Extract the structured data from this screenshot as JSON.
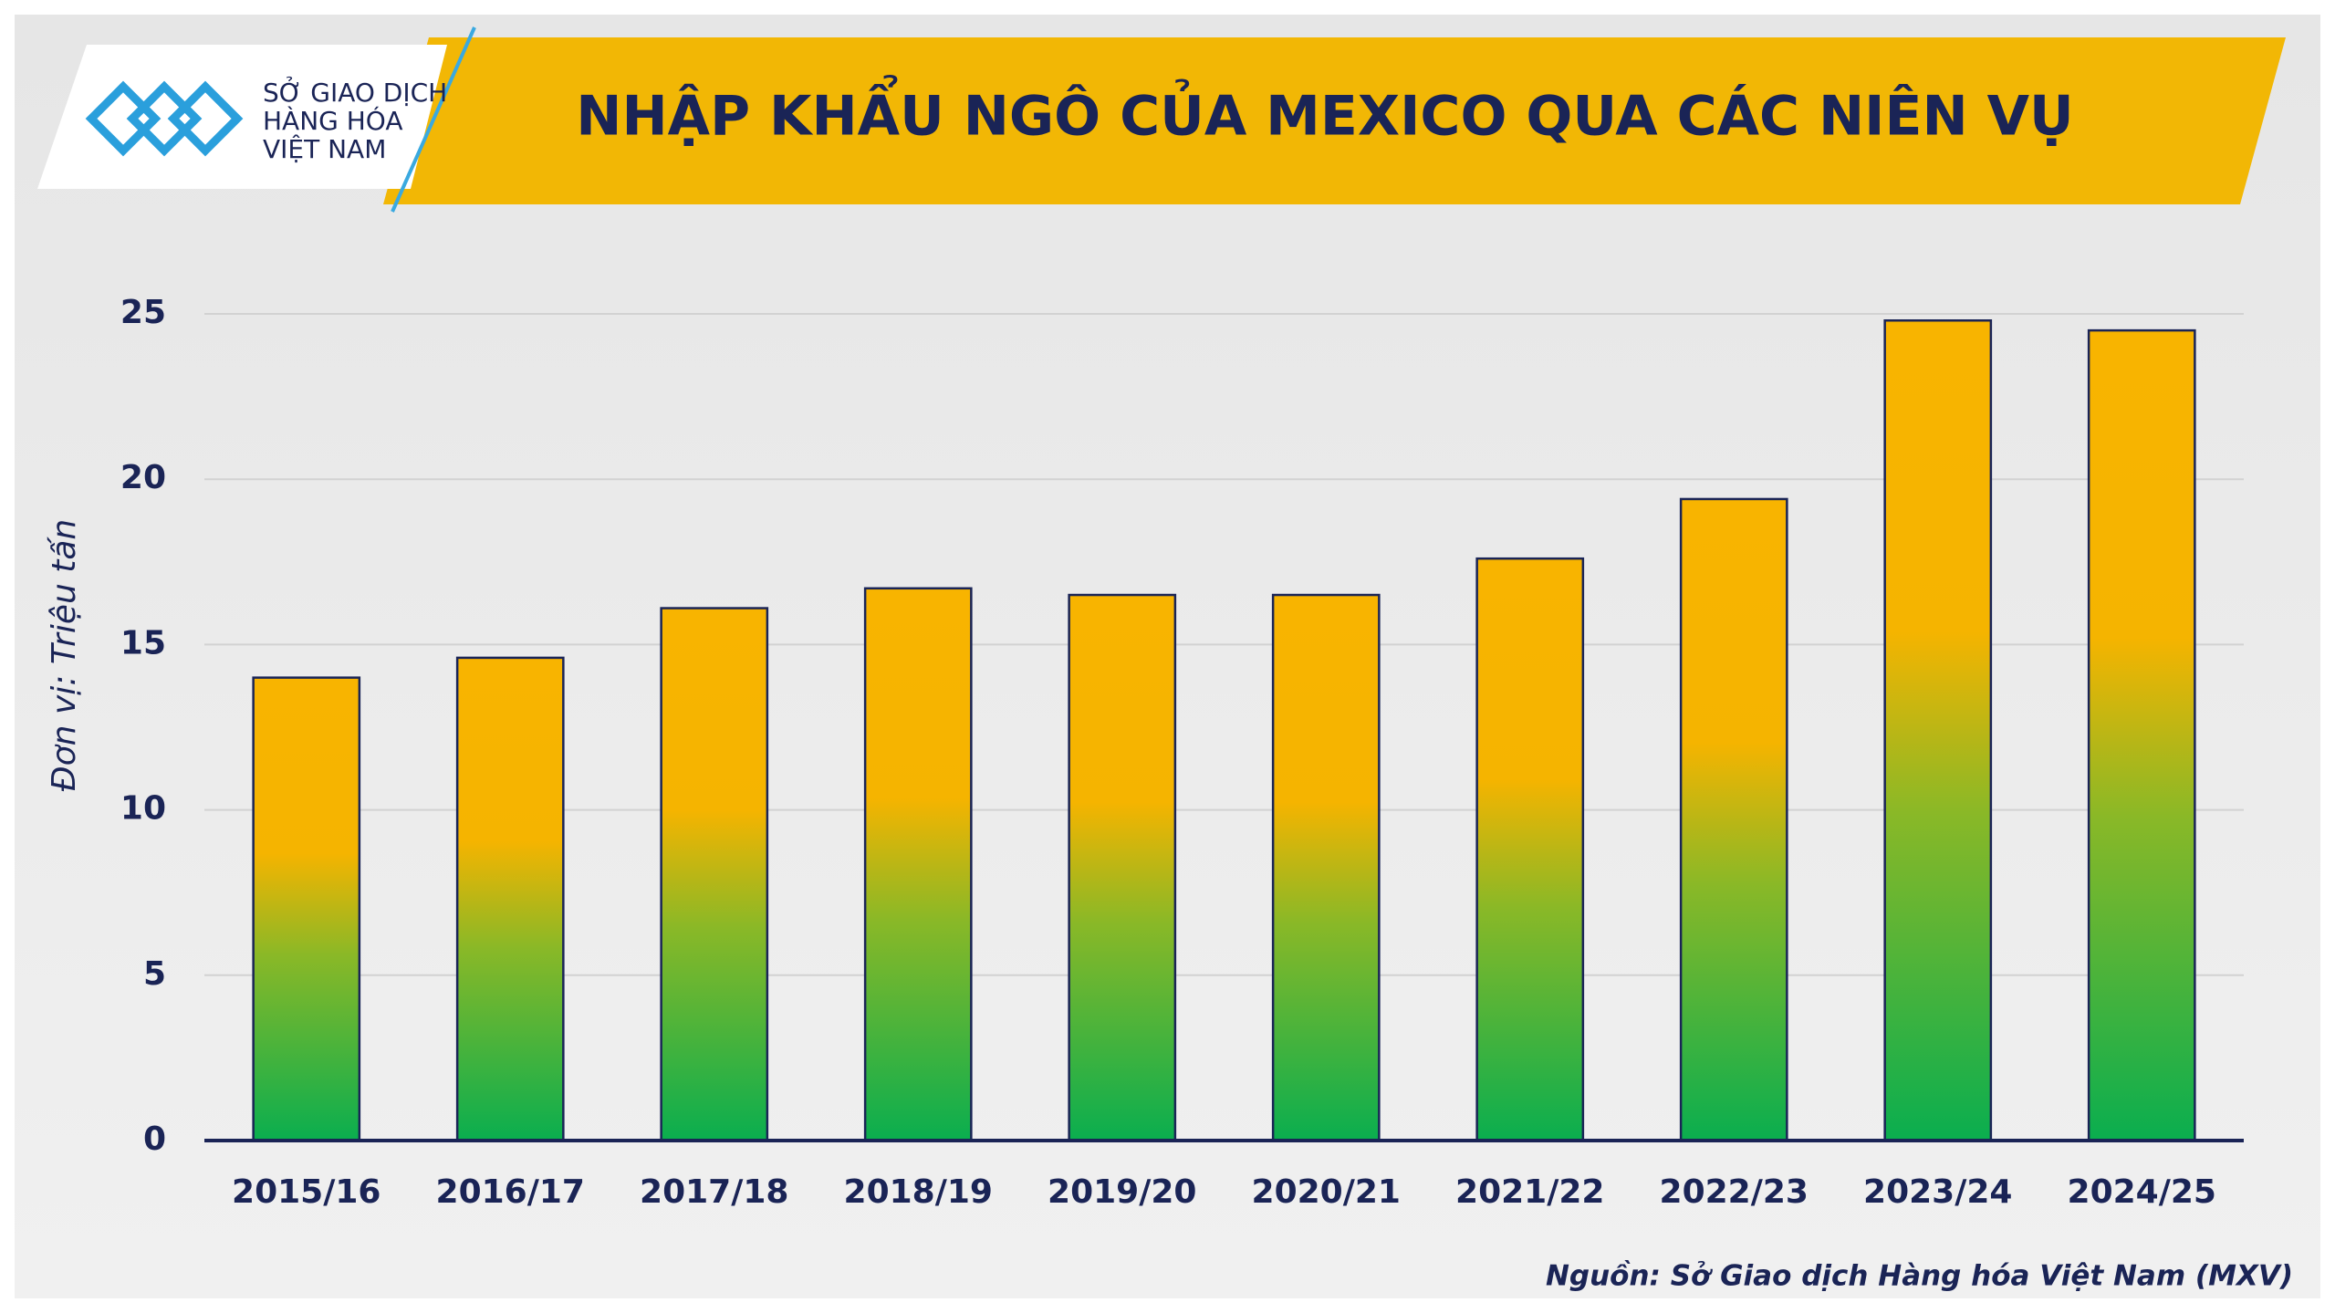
{
  "logo": [
    "SỞ GIAO DỊCH",
    "HÀNG HÓA",
    "VIỆT NAM"
  ],
  "chart_data": {
    "type": "bar",
    "title": "NHẬP KHẨU NGÔ CỦA MEXICO QUA CÁC NIÊN VỤ",
    "y_label": "Đơn vị: Triệu tấn",
    "source": "Nguồn: Sở Giao dịch Hàng hóa Việt Nam (MXV)",
    "categories": [
      "2015/16",
      "2016/17",
      "2017/18",
      "2018/19",
      "2019/20",
      "2020/21",
      "2021/22",
      "2022/23",
      "2023/24",
      "2024/25"
    ],
    "values": [
      14.0,
      14.6,
      16.1,
      16.7,
      16.5,
      16.5,
      17.6,
      19.4,
      24.8,
      24.5
    ],
    "color": "#f5b400",
    "ylim": [
      0,
      25
    ],
    "yticks": [
      0,
      5,
      10,
      15,
      20,
      25
    ],
    "grid": true
  }
}
